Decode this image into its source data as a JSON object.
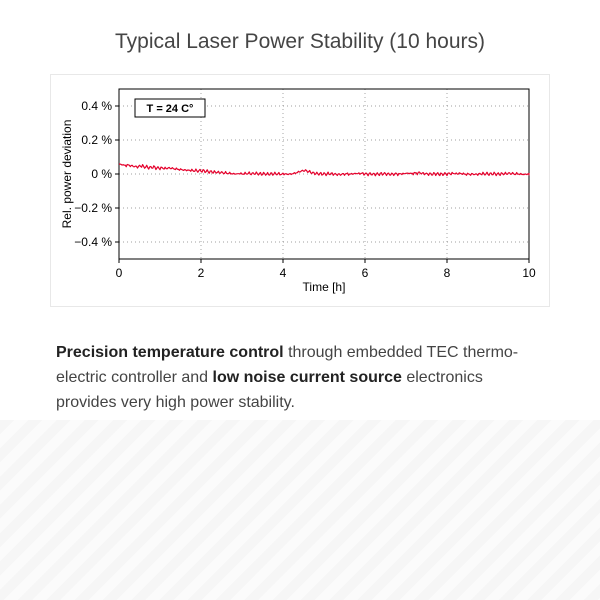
{
  "title": "Typical Laser Power Stability (10 hours)",
  "chart": {
    "type": "line",
    "plot_bg": "#ffffff",
    "axis_color": "#000000",
    "grid_color": "#808080",
    "series_color": "#e4002b",
    "annotation": {
      "text": "T = 24 C°",
      "box_border": "#000000"
    },
    "xlabel": "Time [h]",
    "ylabel": "Rel. power deviation",
    "xlim": [
      0,
      10
    ],
    "ylim": [
      -0.5,
      0.5
    ],
    "xticks": [
      0,
      2,
      4,
      6,
      8,
      10
    ],
    "yticks": [
      -0.4,
      -0.2,
      0,
      0.2,
      0.4
    ],
    "ytick_labels": [
      "−0.4 %",
      "−0.2 %",
      "0 %",
      "0.2 %",
      "0.4 %"
    ],
    "label_fontsize": 12,
    "tick_fontsize": 12,
    "line_width": 1.2,
    "grid_dash": "1,3",
    "x": [
      0,
      0.1,
      0.2,
      0.3,
      0.4,
      0.5,
      0.6,
      0.7,
      0.8,
      0.9,
      1,
      1.1,
      1.2,
      1.3,
      1.4,
      1.5,
      1.6,
      1.7,
      1.8,
      1.9,
      2,
      2.1,
      2.2,
      2.3,
      2.4,
      2.5,
      2.6,
      2.7,
      2.8,
      2.9,
      3,
      3.1,
      3.2,
      3.3,
      3.4,
      3.5,
      3.6,
      3.7,
      3.8,
      3.9,
      4,
      4.1,
      4.2,
      4.3,
      4.4,
      4.5,
      4.6,
      4.7,
      4.8,
      4.9,
      5,
      5.1,
      5.2,
      5.3,
      5.4,
      5.5,
      5.6,
      5.7,
      5.8,
      5.9,
      6,
      6.1,
      6.2,
      6.3,
      6.4,
      6.5,
      6.6,
      6.7,
      6.8,
      6.9,
      7,
      7.1,
      7.2,
      7.3,
      7.4,
      7.5,
      7.6,
      7.7,
      7.8,
      7.9,
      8,
      8.1,
      8.2,
      8.3,
      8.4,
      8.5,
      8.6,
      8.7,
      8.8,
      8.9,
      9,
      9.1,
      9.2,
      9.3,
      9.4,
      9.5,
      9.6,
      9.7,
      9.8,
      9.9,
      10
    ],
    "y": [
      0.055,
      0.05,
      0.052,
      0.048,
      0.044,
      0.048,
      0.042,
      0.038,
      0.04,
      0.035,
      0.034,
      0.032,
      0.033,
      0.03,
      0.028,
      0.027,
      0.025,
      0.023,
      0.02,
      0.018,
      0.018,
      0.015,
      0.012,
      0.01,
      0.008,
      0.006,
      0.005,
      0.004,
      0.003,
      0.004,
      0.002,
      0.003,
      0.001,
      0.002,
      0.0,
      0.001,
      -0.001,
      0.0,
      0.001,
      0.0,
      0.002,
      0.001,
      0.003,
      0.008,
      0.015,
      0.018,
      0.012,
      0.005,
      0.002,
      0.001,
      0.0,
      0.002,
      0.001,
      -0.001,
      0.0,
      0.001,
      -0.002,
      0.0,
      0.001,
      0.002,
      0.0,
      0.001,
      -0.001,
      0.0,
      0.002,
      0.001,
      0.0,
      0.001,
      -0.001,
      0.0,
      0.002,
      0.001,
      0.005,
      0.008,
      0.004,
      0.001,
      0.0,
      0.001,
      -0.001,
      0.0,
      0.001,
      0.002,
      0.0,
      0.001,
      -0.001,
      0.0,
      0.001,
      0.0,
      0.002,
      0.001,
      0.0,
      0.001,
      -0.001,
      0.0,
      0.001,
      0.002,
      0.0,
      0.001,
      0.0,
      0.001,
      0.0
    ]
  },
  "description": {
    "parts": [
      {
        "text": "Precision temperature control",
        "bold": true
      },
      {
        "text": " through embedded TEC thermo-electric controller and ",
        "bold": false
      },
      {
        "text": "low noise current source",
        "bold": true
      },
      {
        "text": " electronics provides very high power stability.",
        "bold": false
      }
    ]
  }
}
